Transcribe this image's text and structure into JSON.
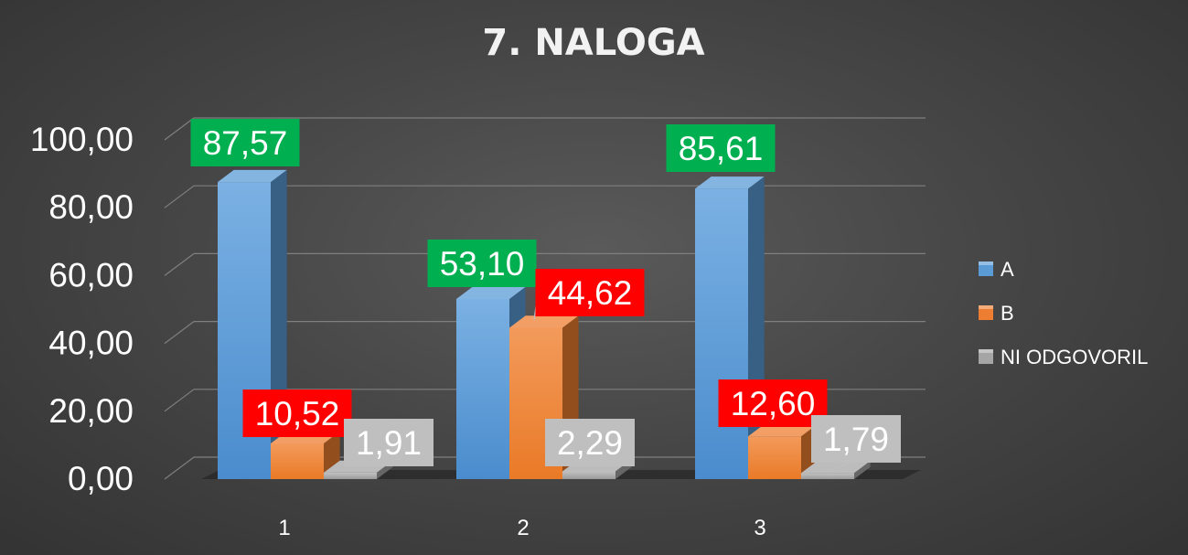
{
  "chart_data": {
    "type": "bar",
    "title": "7. NALOGA",
    "categories": [
      "1",
      "2",
      "3"
    ],
    "series": [
      {
        "name": "A",
        "values": [
          87.57,
          53.1,
          85.61
        ],
        "labels": [
          "87,57",
          "53,10",
          "85,61"
        ],
        "label_bg": "#00b050"
      },
      {
        "name": "B",
        "values": [
          10.52,
          44.62,
          12.6
        ],
        "labels": [
          "10,52",
          "44,62",
          "12,60"
        ],
        "label_bg": "#ff0000"
      },
      {
        "name": "NI ODGOVORIL",
        "values": [
          1.91,
          2.29,
          1.79
        ],
        "labels": [
          "1,91",
          "2,29",
          "1,79"
        ],
        "label_bg": "#bfbfbf"
      }
    ],
    "ylim": [
      0,
      100
    ],
    "yticks": [
      0,
      20,
      40,
      60,
      80,
      100
    ],
    "ytick_labels": [
      "0,00",
      "20,00",
      "40,00",
      "60,00",
      "80,00",
      "100,00"
    ],
    "grid": true,
    "legend": "right",
    "style": "3d-column"
  },
  "colors": {
    "A": "#5b9bd5",
    "B": "#ed7d31",
    "NI ODGOVORIL": "#a5a5a5"
  }
}
